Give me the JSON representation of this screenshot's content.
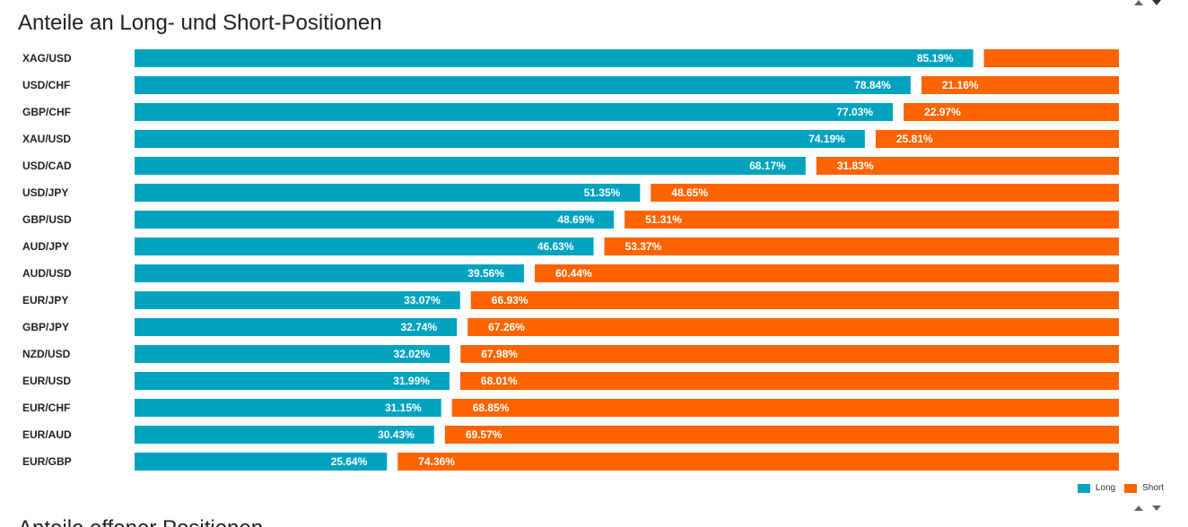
{
  "page": {
    "title": "Anteile an Long- und Short-Positionen",
    "next_section_title": "Anteile offener Positionen"
  },
  "colors": {
    "long": "#00a3bf",
    "short": "#ff6400",
    "label_text": "#ffffff",
    "category_text": "#222222",
    "arrow": "#666666"
  },
  "icons": {
    "scroll_up": "triangle-up",
    "scroll_down": "triangle-down"
  },
  "chart_data": {
    "type": "bar",
    "orientation": "horizontal",
    "stacked": true,
    "title": "Anteile an Long- und Short-Positionen",
    "xlabel": "",
    "ylabel": "",
    "xlim": [
      0,
      100
    ],
    "grid": false,
    "legend_position": "bottom-right",
    "categories": [
      "XAG/USD",
      "USD/CHF",
      "GBP/CHF",
      "XAU/USD",
      "USD/CAD",
      "USD/JPY",
      "GBP/USD",
      "AUD/JPY",
      "AUD/USD",
      "EUR/JPY",
      "GBP/JPY",
      "NZD/USD",
      "EUR/USD",
      "EUR/CHF",
      "EUR/AUD",
      "EUR/GBP"
    ],
    "series": [
      {
        "name": "Long",
        "values": [
          85.19,
          78.84,
          77.03,
          74.19,
          68.17,
          51.35,
          48.69,
          46.63,
          39.56,
          33.07,
          32.74,
          32.02,
          31.99,
          31.15,
          30.43,
          25.64
        ],
        "labels": [
          "85.19%",
          "78.84%",
          "77.03%",
          "74.19%",
          "68.17%",
          "51.35%",
          "48.69%",
          "46.63%",
          "39.56%",
          "33.07%",
          "32.74%",
          "32.02%",
          "31.99%",
          "31.15%",
          "30.43%",
          "25.64%"
        ]
      },
      {
        "name": "Short",
        "values": [
          14.81,
          21.16,
          22.97,
          25.81,
          31.83,
          48.65,
          51.31,
          53.37,
          60.44,
          66.93,
          67.26,
          67.98,
          68.01,
          68.85,
          69.57,
          74.36
        ],
        "labels": [
          null,
          "21.16%",
          "22.97%",
          "25.81%",
          "31.83%",
          "48.65%",
          "51.31%",
          "53.37%",
          "60.44%",
          "66.93%",
          "67.26%",
          "67.98%",
          "68.01%",
          "68.85%",
          "69.57%",
          "74.36%"
        ]
      }
    ]
  }
}
